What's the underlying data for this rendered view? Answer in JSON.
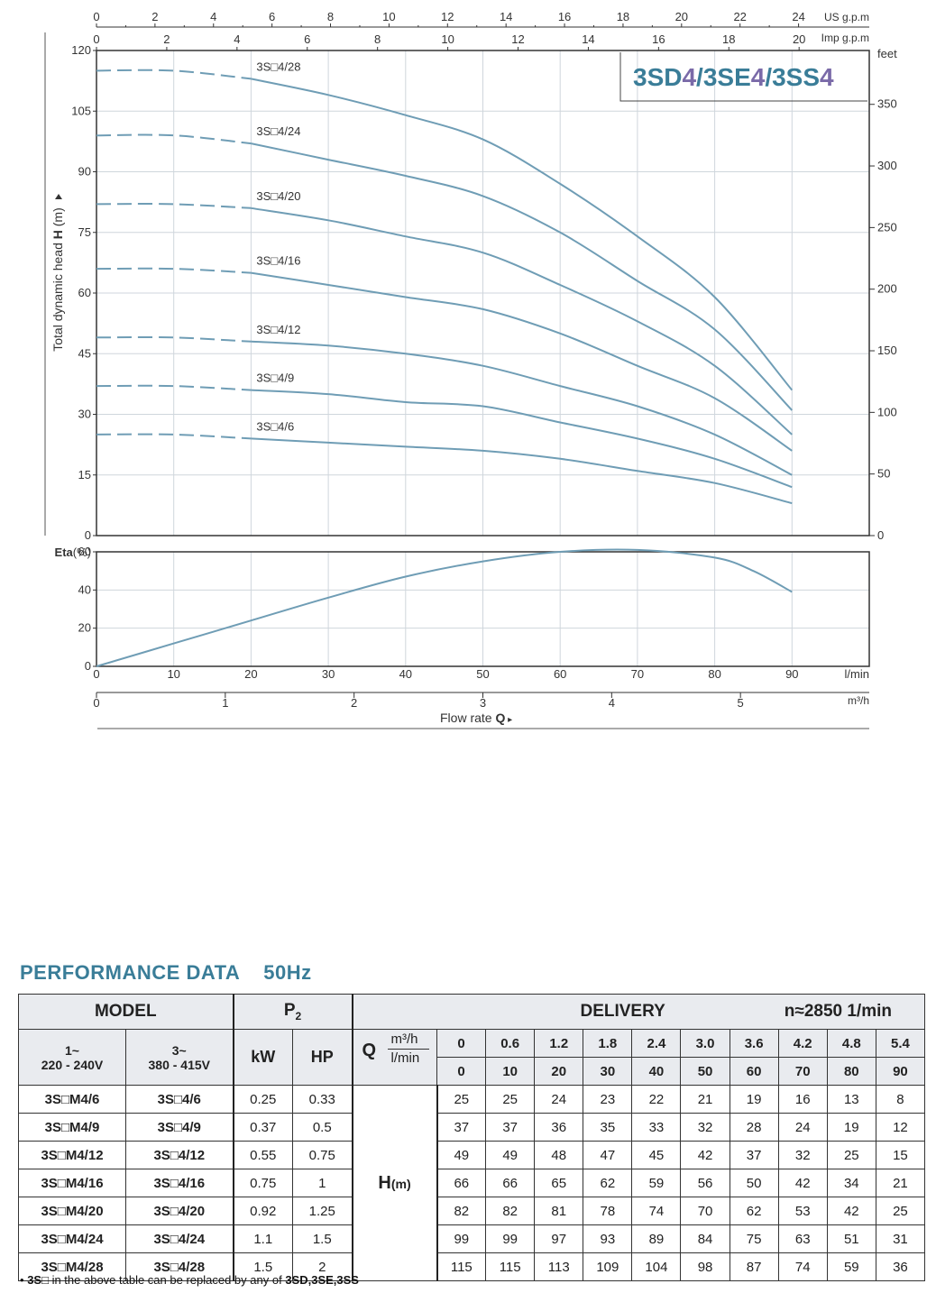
{
  "chart_data": [
    {
      "type": "line",
      "title": "3SD4/3SE4/3SS4",
      "title_parts": [
        "3SD",
        "4",
        "/3SE",
        "4",
        "/3SS",
        "4"
      ],
      "ylabel": "Total dynamic head H (m)",
      "ylabel_parts": [
        "Total dynamic head ",
        "H",
        " (m)"
      ],
      "ylim": [
        0,
        120
      ],
      "yticks": [
        0,
        15,
        30,
        45,
        60,
        75,
        90,
        105,
        120
      ],
      "right_axis": {
        "label": "feet",
        "ticks": [
          0,
          50,
          100,
          150,
          200,
          250,
          300,
          350
        ],
        "factor": 3.28084
      },
      "top_axes": [
        {
          "label": "US g.p.m",
          "ticks": [
            0,
            2,
            4,
            6,
            8,
            10,
            12,
            14,
            16,
            18,
            20,
            22,
            24
          ],
          "lpm_per_unit": 3.7854
        },
        {
          "label": "Imp g.p.m",
          "ticks": [
            0,
            2,
            4,
            6,
            8,
            10,
            12,
            14,
            16,
            18,
            20
          ],
          "lpm_per_unit": 4.546
        }
      ],
      "x": [
        0,
        10,
        20,
        30,
        40,
        50,
        60,
        70,
        80,
        90
      ],
      "xlim": [
        0,
        100
      ],
      "dashed_until": 20,
      "series": [
        {
          "name": "3S□4/28",
          "values": [
            115,
            115,
            113,
            109,
            104,
            98,
            87,
            74,
            59,
            36
          ]
        },
        {
          "name": "3S□4/24",
          "values": [
            99,
            99,
            97,
            93,
            89,
            84,
            75,
            63,
            51,
            31
          ]
        },
        {
          "name": "3S□4/20",
          "values": [
            82,
            82,
            81,
            78,
            74,
            70,
            62,
            53,
            42,
            25
          ]
        },
        {
          "name": "3S□4/16",
          "values": [
            66,
            66,
            65,
            62,
            59,
            56,
            50,
            42,
            34,
            21
          ]
        },
        {
          "name": "3S□4/12",
          "values": [
            49,
            49,
            48,
            47,
            45,
            42,
            37,
            32,
            25,
            15
          ]
        },
        {
          "name": "3S□4/9",
          "values": [
            37,
            37,
            36,
            35,
            33,
            32,
            28,
            24,
            19,
            12
          ]
        },
        {
          "name": "3S□4/6",
          "values": [
            25,
            25,
            24,
            23,
            22,
            21,
            19,
            16,
            13,
            8
          ]
        }
      ],
      "grid": true,
      "line_color": "#6f9db5"
    },
    {
      "type": "line",
      "ylabel": "Eta(%)",
      "ylim": [
        0,
        60
      ],
      "yticks": [
        0,
        20,
        40,
        60
      ],
      "xlabel": "Flow  rate  Q",
      "xlabel_parts": [
        "Flow  rate  ",
        "Q",
        "  ▸"
      ],
      "xticks_lpm": [
        0,
        10,
        20,
        30,
        40,
        50,
        60,
        70,
        80,
        90
      ],
      "x_unit_lpm": "l/min",
      "xticks_m3h": [
        0,
        1,
        2,
        3,
        4,
        5
      ],
      "x_unit_m3h": "m³/h",
      "x": [
        0,
        10,
        20,
        30,
        40,
        50,
        60,
        70,
        80,
        85,
        90
      ],
      "series": [
        {
          "values": [
            0,
            12,
            24,
            36,
            47,
            55,
            60,
            61,
            57,
            50,
            39
          ]
        }
      ],
      "grid": true,
      "line_color": "#6f9db5"
    }
  ],
  "performance": {
    "title": "PERFORMANCE  DATA",
    "freq": "50Hz",
    "model_header": "MODEL",
    "p2_header": "P",
    "p2_sub": "2",
    "delivery_header": "DELIVERY",
    "speed": "n≈2850 1/min",
    "phase1_line1": "1~",
    "phase1_line2": "220 - 240V",
    "phase3_line1": "3~",
    "phase3_line2": "380 - 415V",
    "kw_label": "kW",
    "hp_label": "HP",
    "q_label": "Q",
    "unit_m3h": "m³/h",
    "unit_lmin": "l/min",
    "h_label": "H",
    "h_unit": "(m)",
    "m3h_values": [
      "0",
      "0.6",
      "1.2",
      "1.8",
      "2.4",
      "3.0",
      "3.6",
      "4.2",
      "4.8",
      "5.4"
    ],
    "lmin_values": [
      "0",
      "10",
      "20",
      "30",
      "40",
      "50",
      "60",
      "70",
      "80",
      "90"
    ],
    "rows": [
      {
        "m1": "3S□M4/6",
        "m3": "3S□4/6",
        "kw": "0.25",
        "hp": "0.33",
        "h": [
          "25",
          "25",
          "24",
          "23",
          "22",
          "21",
          "19",
          "16",
          "13",
          "8"
        ]
      },
      {
        "m1": "3S□M4/9",
        "m3": "3S□4/9",
        "kw": "0.37",
        "hp": "0.5",
        "h": [
          "37",
          "37",
          "36",
          "35",
          "33",
          "32",
          "28",
          "24",
          "19",
          "12"
        ]
      },
      {
        "m1": "3S□M4/12",
        "m3": "3S□4/12",
        "kw": "0.55",
        "hp": "0.75",
        "h": [
          "49",
          "49",
          "48",
          "47",
          "45",
          "42",
          "37",
          "32",
          "25",
          "15"
        ]
      },
      {
        "m1": "3S□M4/16",
        "m3": "3S□4/16",
        "kw": "0.75",
        "hp": "1",
        "h": [
          "66",
          "66",
          "65",
          "62",
          "59",
          "56",
          "50",
          "42",
          "34",
          "21"
        ]
      },
      {
        "m1": "3S□M4/20",
        "m3": "3S□4/20",
        "kw": "0.92",
        "hp": "1.25",
        "h": [
          "82",
          "82",
          "81",
          "78",
          "74",
          "70",
          "62",
          "53",
          "42",
          "25"
        ]
      },
      {
        "m1": "3S□M4/24",
        "m3": "3S□4/24",
        "kw": "1.1",
        "hp": "1.5",
        "h": [
          "99",
          "99",
          "97",
          "93",
          "89",
          "84",
          "75",
          "63",
          "51",
          "31"
        ]
      },
      {
        "m1": "3S□M4/28",
        "m3": "3S□4/28",
        "kw": "1.5",
        "hp": "2",
        "h": [
          "115",
          "115",
          "113",
          "109",
          "104",
          "98",
          "87",
          "74",
          "59",
          "36"
        ]
      }
    ]
  },
  "note": {
    "bullet": "•",
    "part1": "3S□",
    "part2": " in the above table can be replaced by any of ",
    "part3": "3SD,3SE,3SS"
  },
  "colors": {
    "curve": "#6f9db5",
    "title_teal": "#3a7d98",
    "title_purple": "#7a6aa8",
    "grid": "#cfd6dc",
    "table_header_bg": "#e9ebef"
  }
}
